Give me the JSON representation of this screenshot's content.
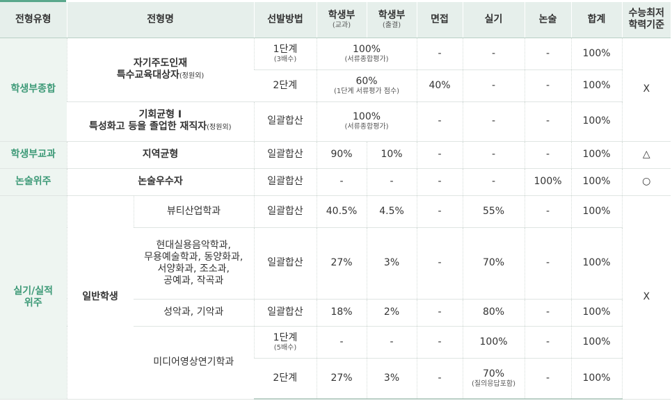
{
  "headers": {
    "type": "전형유형",
    "name": "전형명",
    "method": "선발방법",
    "record1": "학생부",
    "record1_sub": "(교과)",
    "record2": "학생부",
    "record2_sub": "(출결)",
    "interview": "면접",
    "practical": "실기",
    "essay": "논술",
    "total": "합계",
    "csat1": "수능최저",
    "csat2": "학력기준"
  },
  "rows": {
    "comp": {
      "category": "학생부종합",
      "name1_line1": "자기주도인재",
      "name1_line2": "특수교육대상자",
      "name1_suffix": "(정원외)",
      "r1_method": "1단계",
      "r1_method_sub": "(3배수)",
      "r1_record": "100%",
      "r1_record_sub": "(서류종합평가)",
      "r1_interview": "-",
      "r1_practical": "-",
      "r1_essay": "-",
      "r1_total": "100%",
      "r2_method": "2단계",
      "r2_record": "60%",
      "r2_record_sub": "(1단계 서류평가 점수)",
      "r2_interview": "40%",
      "r2_practical": "-",
      "r2_essay": "-",
      "r2_total": "100%",
      "csat": "X",
      "name2_line1": "기회균형 I",
      "name2_line2": "특성화고 등을 졸업한 재직자",
      "name2_suffix": "(정원외)",
      "r3_method": "일괄합산",
      "r3_record": "100%",
      "r3_record_sub": "(서류종합평가)",
      "r3_interview": "-",
      "r3_practical": "-",
      "r3_essay": "-",
      "r3_total": "100%"
    },
    "subject": {
      "category": "학생부교과",
      "name": "지역균형",
      "method": "일괄합산",
      "record1": "90%",
      "record2": "10%",
      "interview": "-",
      "practical": "-",
      "essay": "-",
      "total": "100%",
      "csat": "△"
    },
    "essay": {
      "category": "논술위주",
      "name": "논술우수자",
      "method": "일괄합산",
      "record1": "-",
      "record2": "-",
      "interview": "-",
      "practical": "-",
      "essay": "100%",
      "total": "100%",
      "csat": "○"
    },
    "practical": {
      "category_line1": "실기/실적",
      "category_line2": "위주",
      "name": "일반학생",
      "csat": "X",
      "beauty": {
        "dept": "뷰티산업학과",
        "method": "일괄합산",
        "record1": "40.5%",
        "record2": "4.5%",
        "interview": "-",
        "practical": "55%",
        "essay": "-",
        "total": "100%"
      },
      "music": {
        "dept_l1": "현대실용음악학과,",
        "dept_l2": "무용예술학과, 동양화과,",
        "dept_l3": "서양화과, 조소과,",
        "dept_l4": "공예과, 작곡과",
        "method": "일괄합산",
        "record1": "27%",
        "record2": "3%",
        "interview": "-",
        "practical": "70%",
        "essay": "-",
        "total": "100%"
      },
      "vocal": {
        "dept": "성악과, 기악과",
        "method": "일괄합산",
        "record1": "18%",
        "record2": "2%",
        "interview": "-",
        "practical": "80%",
        "essay": "-",
        "total": "100%"
      },
      "media": {
        "dept": "미디어영상연기학과",
        "s1_method": "1단계",
        "s1_method_sub": "(5배수)",
        "s1_record1": "-",
        "s1_record2": "-",
        "s1_interview": "-",
        "s1_practical": "100%",
        "s1_essay": "-",
        "s1_total": "100%",
        "s2_method": "2단계",
        "s2_record1": "27%",
        "s2_record2": "3%",
        "s2_interview": "-",
        "s2_practical": "70%",
        "s2_practical_sub": "(질의응답포함)",
        "s2_essay": "-",
        "s2_total": "100%"
      }
    }
  }
}
